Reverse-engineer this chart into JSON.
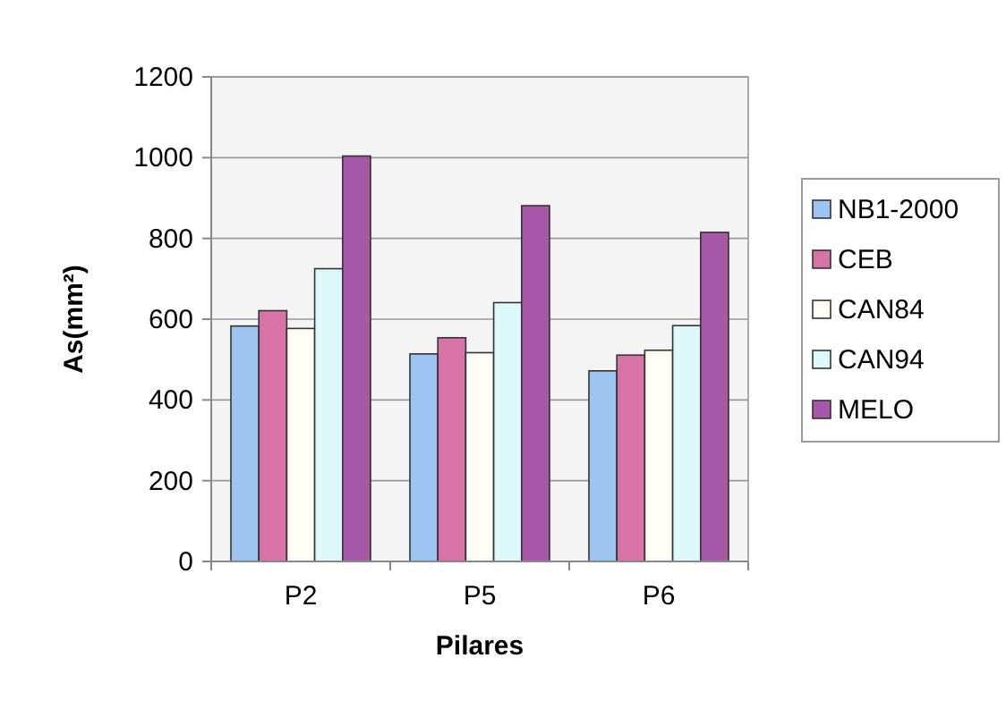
{
  "chart_data": {
    "type": "bar",
    "xlabel": "Pilares",
    "ylabel": "As(mm²)",
    "categories": [
      "P2",
      "P5",
      "P6"
    ],
    "series": [
      {
        "name": "NB1-2000",
        "color": "#9dc3f0",
        "values": [
          583,
          514,
          472
        ]
      },
      {
        "name": "CEB",
        "color": "#d873a8",
        "values": [
          621,
          554,
          511
        ]
      },
      {
        "name": "CAN84",
        "color": "#fffdf5",
        "values": [
          577,
          517,
          523
        ]
      },
      {
        "name": "CAN94",
        "color": "#dcf8fa",
        "values": [
          725,
          641,
          584
        ]
      },
      {
        "name": "MELO",
        "color": "#a858a8",
        "values": [
          1004,
          881,
          815
        ]
      }
    ],
    "ylim": [
      0,
      1200
    ],
    "yticks": [
      0,
      200,
      400,
      600,
      800,
      1000,
      1200
    ],
    "grid": "y",
    "legend": "right"
  }
}
